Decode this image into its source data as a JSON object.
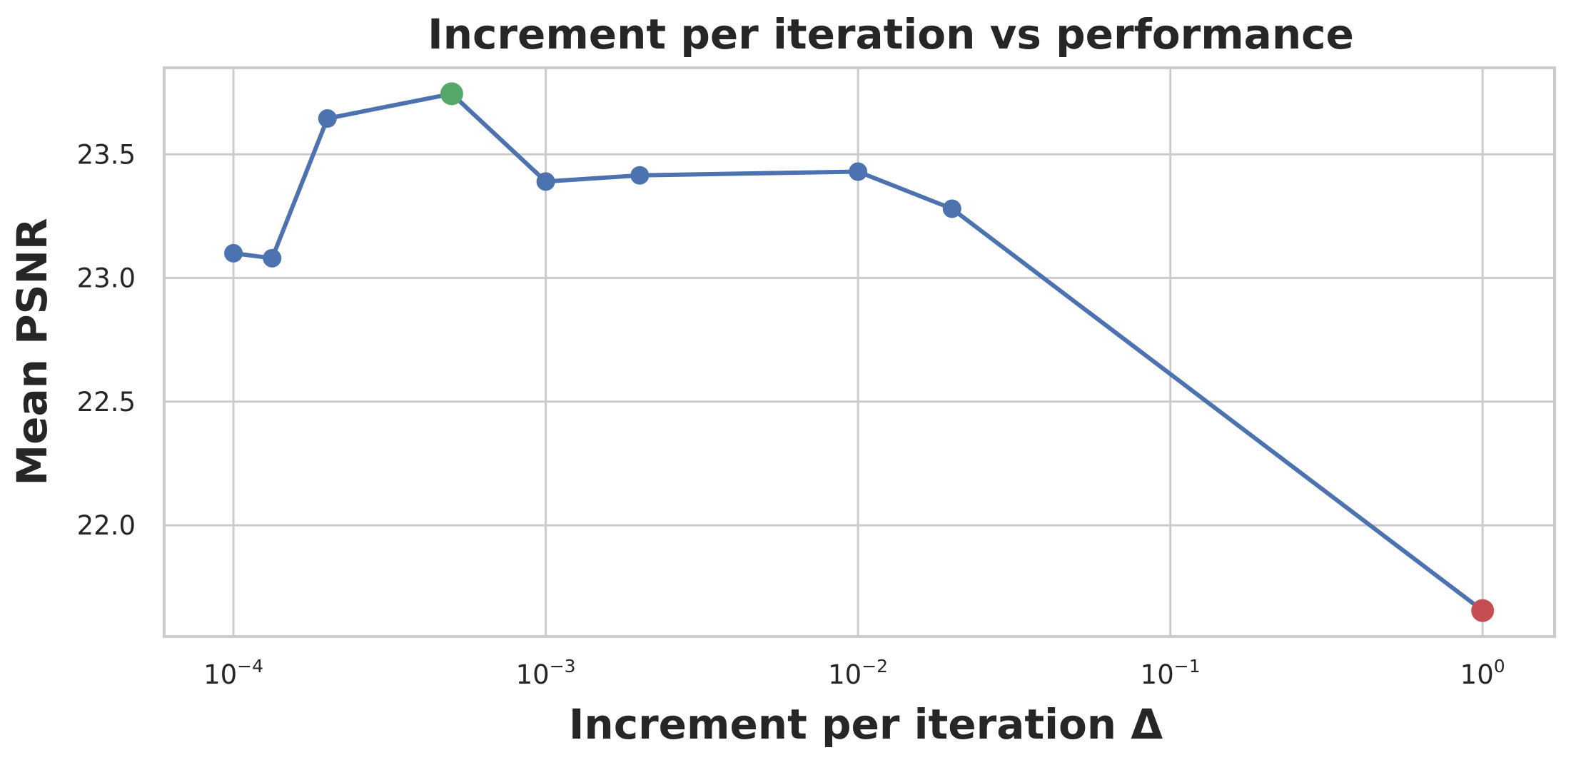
{
  "chart_data": {
    "type": "line",
    "title": "Increment per iteration vs performance",
    "xlabel": "Increment per iteration Δ",
    "ylabel": "Mean PSNR",
    "xscale": "log",
    "xlim": [
      6e-05,
      1.7
    ],
    "ylim": [
      21.55,
      23.85
    ],
    "grid": true,
    "x_ticks": [
      {
        "value": 0.0001,
        "base": "10",
        "exp": "−4"
      },
      {
        "value": 0.001,
        "base": "10",
        "exp": "−3"
      },
      {
        "value": 0.01,
        "base": "10",
        "exp": "−2"
      },
      {
        "value": 0.1,
        "base": "10",
        "exp": "−1"
      },
      {
        "value": 1,
        "base": "10",
        "exp": "0"
      }
    ],
    "y_ticks": [
      {
        "value": 22.0,
        "label": "22.0"
      },
      {
        "value": 22.5,
        "label": "22.5"
      },
      {
        "value": 23.0,
        "label": "23.0"
      },
      {
        "value": 23.5,
        "label": "23.5"
      }
    ],
    "series": [
      {
        "color": "#4c72b0",
        "points": [
          {
            "x": 0.0001,
            "y": 23.1
          },
          {
            "x": 0.000133,
            "y": 23.08
          },
          {
            "x": 0.0002,
            "y": 23.645
          },
          {
            "x": 0.0005,
            "y": 23.745,
            "color": "#55a868"
          },
          {
            "x": 0.001,
            "y": 23.39
          },
          {
            "x": 0.002,
            "y": 23.415
          },
          {
            "x": 0.01,
            "y": 23.43
          },
          {
            "x": 0.02,
            "y": 23.28
          },
          {
            "x": 1,
            "y": 21.655,
            "color": "#c44e52"
          }
        ]
      }
    ]
  }
}
